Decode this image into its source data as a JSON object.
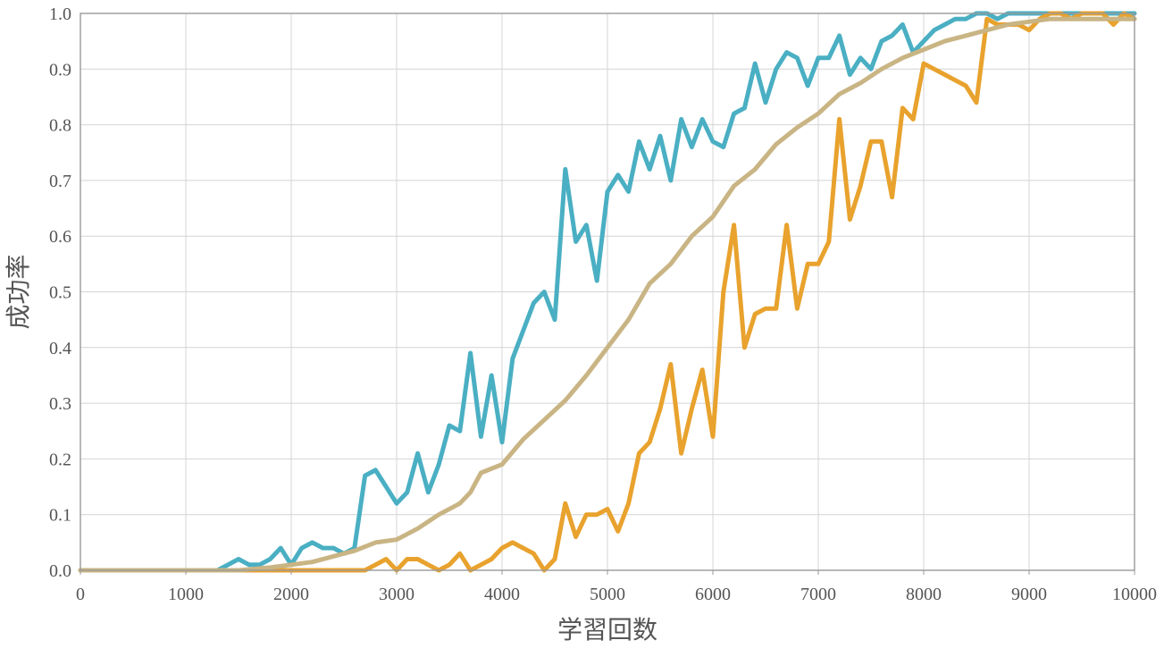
{
  "chart_data": {
    "type": "line",
    "title": "",
    "xlabel": "学習回数",
    "ylabel": "成功率",
    "xlim": [
      0,
      10000
    ],
    "ylim": [
      0,
      1.0
    ],
    "x_ticks": [
      "0",
      "1000",
      "2000",
      "3000",
      "4000",
      "5000",
      "6000",
      "7000",
      "8000",
      "9000",
      "10000"
    ],
    "y_ticks": [
      "0.0",
      "0.1",
      "0.2",
      "0.3",
      "0.4",
      "0.5",
      "0.6",
      "0.7",
      "0.8",
      "0.9",
      "1.0"
    ],
    "grid": true,
    "legend": "none",
    "series": [
      {
        "color": "#4aafc3",
        "points": [
          [
            0,
            0
          ],
          [
            1300,
            0
          ],
          [
            1400,
            0.01
          ],
          [
            1500,
            0.02
          ],
          [
            1600,
            0.01
          ],
          [
            1700,
            0.01
          ],
          [
            1800,
            0.02
          ],
          [
            1900,
            0.04
          ],
          [
            2000,
            0.01
          ],
          [
            2100,
            0.04
          ],
          [
            2200,
            0.05
          ],
          [
            2300,
            0.04
          ],
          [
            2400,
            0.04
          ],
          [
            2500,
            0.03
          ],
          [
            2600,
            0.04
          ],
          [
            2700,
            0.17
          ],
          [
            2800,
            0.18
          ],
          [
            2900,
            0.15
          ],
          [
            3000,
            0.12
          ],
          [
            3100,
            0.14
          ],
          [
            3200,
            0.21
          ],
          [
            3300,
            0.14
          ],
          [
            3400,
            0.19
          ],
          [
            3500,
            0.26
          ],
          [
            3600,
            0.25
          ],
          [
            3700,
            0.39
          ],
          [
            3800,
            0.24
          ],
          [
            3900,
            0.35
          ],
          [
            4000,
            0.23
          ],
          [
            4100,
            0.38
          ],
          [
            4200,
            0.43
          ],
          [
            4300,
            0.48
          ],
          [
            4400,
            0.5
          ],
          [
            4500,
            0.45
          ],
          [
            4600,
            0.72
          ],
          [
            4700,
            0.59
          ],
          [
            4800,
            0.62
          ],
          [
            4900,
            0.52
          ],
          [
            5000,
            0.68
          ],
          [
            5100,
            0.71
          ],
          [
            5200,
            0.68
          ],
          [
            5300,
            0.77
          ],
          [
            5400,
            0.72
          ],
          [
            5500,
            0.78
          ],
          [
            5600,
            0.7
          ],
          [
            5700,
            0.81
          ],
          [
            5800,
            0.76
          ],
          [
            5900,
            0.81
          ],
          [
            6000,
            0.77
          ],
          [
            6100,
            0.76
          ],
          [
            6200,
            0.82
          ],
          [
            6300,
            0.83
          ],
          [
            6400,
            0.91
          ],
          [
            6500,
            0.84
          ],
          [
            6600,
            0.9
          ],
          [
            6700,
            0.93
          ],
          [
            6800,
            0.92
          ],
          [
            6900,
            0.87
          ],
          [
            7000,
            0.92
          ],
          [
            7100,
            0.92
          ],
          [
            7200,
            0.96
          ],
          [
            7300,
            0.89
          ],
          [
            7400,
            0.92
          ],
          [
            7500,
            0.9
          ],
          [
            7600,
            0.95
          ],
          [
            7700,
            0.96
          ],
          [
            7800,
            0.98
          ],
          [
            7900,
            0.93
          ],
          [
            8000,
            0.95
          ],
          [
            8100,
            0.97
          ],
          [
            8200,
            0.98
          ],
          [
            8300,
            0.99
          ],
          [
            8400,
            0.99
          ],
          [
            8500,
            1.0
          ],
          [
            8600,
            1.0
          ],
          [
            8700,
            0.99
          ],
          [
            8800,
            1.0
          ],
          [
            9000,
            1.0
          ],
          [
            10000,
            1.0
          ]
        ]
      },
      {
        "color": "#e8a22d",
        "points": [
          [
            0,
            0
          ],
          [
            2700,
            0
          ],
          [
            2800,
            0.01
          ],
          [
            2900,
            0.02
          ],
          [
            3000,
            0
          ],
          [
            3100,
            0.02
          ],
          [
            3200,
            0.02
          ],
          [
            3300,
            0.01
          ],
          [
            3400,
            0
          ],
          [
            3500,
            0.01
          ],
          [
            3600,
            0.03
          ],
          [
            3700,
            0
          ],
          [
            3800,
            0.01
          ],
          [
            3900,
            0.02
          ],
          [
            4000,
            0.04
          ],
          [
            4100,
            0.05
          ],
          [
            4200,
            0.04
          ],
          [
            4300,
            0.03
          ],
          [
            4400,
            0
          ],
          [
            4500,
            0.02
          ],
          [
            4600,
            0.12
          ],
          [
            4700,
            0.06
          ],
          [
            4800,
            0.1
          ],
          [
            4900,
            0.1
          ],
          [
            5000,
            0.11
          ],
          [
            5100,
            0.07
          ],
          [
            5200,
            0.12
          ],
          [
            5300,
            0.21
          ],
          [
            5400,
            0.23
          ],
          [
            5500,
            0.29
          ],
          [
            5600,
            0.37
          ],
          [
            5700,
            0.21
          ],
          [
            5800,
            0.29
          ],
          [
            5900,
            0.36
          ],
          [
            6000,
            0.24
          ],
          [
            6100,
            0.5
          ],
          [
            6200,
            0.62
          ],
          [
            6300,
            0.4
          ],
          [
            6400,
            0.46
          ],
          [
            6500,
            0.47
          ],
          [
            6600,
            0.47
          ],
          [
            6700,
            0.62
          ],
          [
            6800,
            0.47
          ],
          [
            6900,
            0.55
          ],
          [
            7000,
            0.55
          ],
          [
            7100,
            0.59
          ],
          [
            7200,
            0.81
          ],
          [
            7300,
            0.63
          ],
          [
            7400,
            0.69
          ],
          [
            7500,
            0.77
          ],
          [
            7600,
            0.77
          ],
          [
            7700,
            0.67
          ],
          [
            7800,
            0.83
          ],
          [
            7900,
            0.81
          ],
          [
            8000,
            0.91
          ],
          [
            8100,
            0.9
          ],
          [
            8200,
            0.89
          ],
          [
            8300,
            0.88
          ],
          [
            8400,
            0.87
          ],
          [
            8500,
            0.84
          ],
          [
            8600,
            0.99
          ],
          [
            8700,
            0.98
          ],
          [
            8800,
            0.98
          ],
          [
            8900,
            0.98
          ],
          [
            9000,
            0.97
          ],
          [
            9100,
            0.99
          ],
          [
            9200,
            1.0
          ],
          [
            9300,
            1.0
          ],
          [
            9400,
            0.99
          ],
          [
            9500,
            1.0
          ],
          [
            9600,
            1.0
          ],
          [
            9700,
            1.0
          ],
          [
            9800,
            0.98
          ],
          [
            9900,
            1.0
          ],
          [
            10000,
            0.99
          ]
        ]
      },
      {
        "color": "#c9b484",
        "points": [
          [
            0,
            0
          ],
          [
            1500,
            0
          ],
          [
            1800,
            0.005
          ],
          [
            2000,
            0.01
          ],
          [
            2200,
            0.015
          ],
          [
            2400,
            0.025
          ],
          [
            2600,
            0.035
          ],
          [
            2800,
            0.05
          ],
          [
            3000,
            0.055
          ],
          [
            3200,
            0.075
          ],
          [
            3400,
            0.1
          ],
          [
            3600,
            0.12
          ],
          [
            3700,
            0.14
          ],
          [
            3800,
            0.175
          ],
          [
            4000,
            0.19
          ],
          [
            4200,
            0.235
          ],
          [
            4400,
            0.27
          ],
          [
            4600,
            0.305
          ],
          [
            4800,
            0.35
          ],
          [
            5000,
            0.4
          ],
          [
            5200,
            0.45
          ],
          [
            5400,
            0.515
          ],
          [
            5600,
            0.55
          ],
          [
            5800,
            0.6
          ],
          [
            6000,
            0.635
          ],
          [
            6200,
            0.69
          ],
          [
            6400,
            0.72
          ],
          [
            6600,
            0.765
          ],
          [
            6800,
            0.795
          ],
          [
            7000,
            0.82
          ],
          [
            7200,
            0.855
          ],
          [
            7400,
            0.875
          ],
          [
            7600,
            0.9
          ],
          [
            7800,
            0.92
          ],
          [
            8000,
            0.935
          ],
          [
            8200,
            0.95
          ],
          [
            8400,
            0.96
          ],
          [
            8600,
            0.97
          ],
          [
            8800,
            0.98
          ],
          [
            9000,
            0.985
          ],
          [
            9200,
            0.99
          ],
          [
            9500,
            0.99
          ],
          [
            10000,
            0.99
          ]
        ]
      }
    ]
  }
}
